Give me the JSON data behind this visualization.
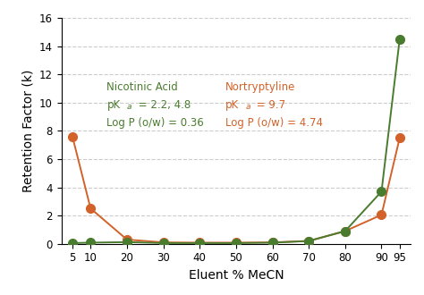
{
  "x": [
    5,
    10,
    20,
    30,
    40,
    50,
    60,
    70,
    80,
    90,
    95
  ],
  "nicotinic_acid": [
    0.05,
    0.08,
    0.12,
    0.05,
    0.05,
    0.05,
    0.08,
    0.2,
    0.9,
    3.7,
    14.5
  ],
  "nortriptyline": [
    7.6,
    2.5,
    0.3,
    0.1,
    0.08,
    0.08,
    0.1,
    0.2,
    0.9,
    2.05,
    7.5
  ],
  "nicotinic_color": "#4a7c2f",
  "nortriptyline_color": "#d2622a",
  "xlabel": "Eluent % MeCN",
  "ylabel": "Retention Factor (k)",
  "xlim": [
    2,
    98
  ],
  "ylim": [
    0,
    16
  ],
  "yticks": [
    0,
    2,
    4,
    6,
    8,
    10,
    12,
    14,
    16
  ],
  "xticks": [
    5,
    10,
    20,
    30,
    40,
    50,
    60,
    70,
    80,
    90,
    95
  ],
  "grid_color": "#cccccc",
  "background_color": "#ffffff",
  "nicotinic_label": "Nicotinic Acid",
  "nortriptyline_label": "Nortryptyline",
  "nicotinic_pka": "pKₐ = 2.2, 4.8",
  "nicotinic_logp": "Log P (o/w) = 0.36",
  "nortriptyline_pka": "pKₐ = 9.7",
  "nortriptyline_logp": "Log P (o/w) = 4.74",
  "marker_size": 7
}
